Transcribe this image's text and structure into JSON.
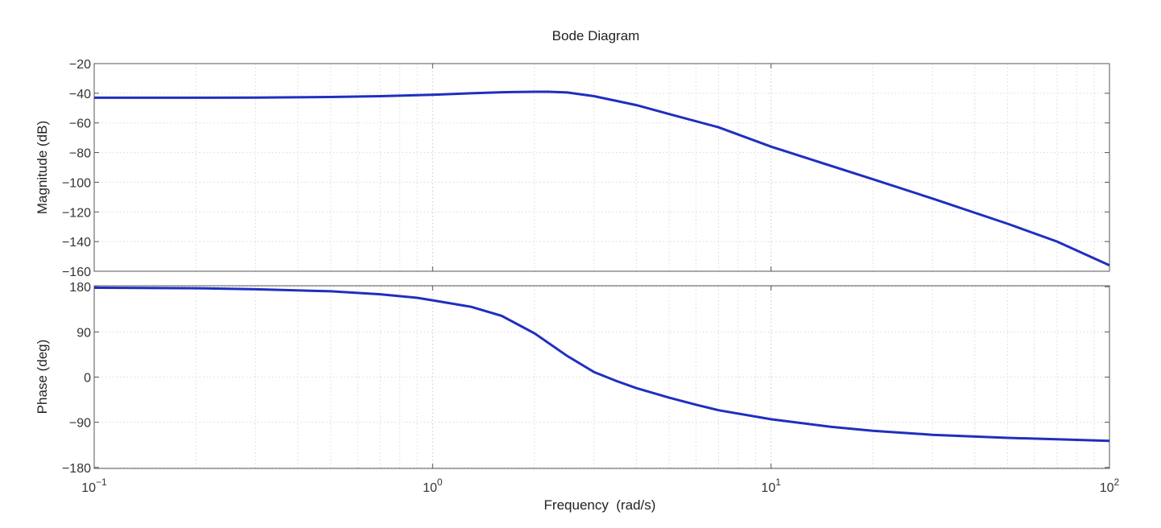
{
  "chart_data": [
    {
      "type": "line",
      "panel": "magnitude",
      "title": "Bode Diagram",
      "xlabel": "",
      "ylabel": "Magnitude (dB)",
      "xscale": "log",
      "xlim": [
        0.1,
        100
      ],
      "ylim": [
        -160,
        -20
      ],
      "yticks": [
        -20,
        -40,
        -60,
        -80,
        -100,
        -120,
        -140,
        -160
      ],
      "ytick_labels": [
        "−20",
        "−40",
        "−60",
        "−80",
        "−100",
        "−120",
        "−140",
        "−160"
      ],
      "grid": true,
      "line_color": "#1f2fbf",
      "series": [
        {
          "x": [
            0.1,
            0.2,
            0.3,
            0.5,
            0.7,
            1.0,
            1.3,
            1.6,
            2.0,
            2.2,
            2.5,
            3.0,
            4.0,
            5.0,
            7.0,
            10.0,
            20.0,
            30.0,
            50.0,
            70.0,
            100.0
          ],
          "values": [
            -43,
            -43,
            -42.9,
            -42.5,
            -42,
            -41,
            -40,
            -39.3,
            -39,
            -39,
            -39.5,
            -42,
            -48,
            -54,
            -63,
            -76,
            -98,
            -111,
            -128,
            -140,
            -156
          ]
        }
      ]
    },
    {
      "type": "line",
      "panel": "phase",
      "xlabel": "Frequency  (rad/s)",
      "ylabel": "Phase (deg)",
      "xscale": "log",
      "xlim": [
        0.1,
        100
      ],
      "ylim": [
        -182,
        182
      ],
      "yticks": [
        180,
        90,
        0,
        -90,
        -180
      ],
      "ytick_labels": [
        "180",
        "90",
        "0",
        "−90",
        "−180"
      ],
      "xticks": [
        0.1,
        1,
        10,
        100
      ],
      "xtick_labels": [
        {
          "base": "10",
          "exp": "−1"
        },
        {
          "base": "10",
          "exp": "0"
        },
        {
          "base": "10",
          "exp": "1"
        },
        {
          "base": "10",
          "exp": "2"
        }
      ],
      "grid": true,
      "line_color": "#1f2fbf",
      "series": [
        {
          "x": [
            0.1,
            0.2,
            0.3,
            0.5,
            0.7,
            0.9,
            1.0,
            1.3,
            1.6,
            2.0,
            2.5,
            3.0,
            3.5,
            4.0,
            5.0,
            6.0,
            7.0,
            10.0,
            15.0,
            20.0,
            30.0,
            50.0,
            70.0,
            100.0
          ],
          "values": [
            178,
            177,
            175,
            171,
            165,
            158,
            153,
            140,
            122,
            87,
            42,
            10,
            -8,
            -22,
            -41,
            -55,
            -66,
            -84,
            -99,
            -107,
            -115,
            -121,
            -124,
            -127
          ]
        }
      ]
    }
  ]
}
